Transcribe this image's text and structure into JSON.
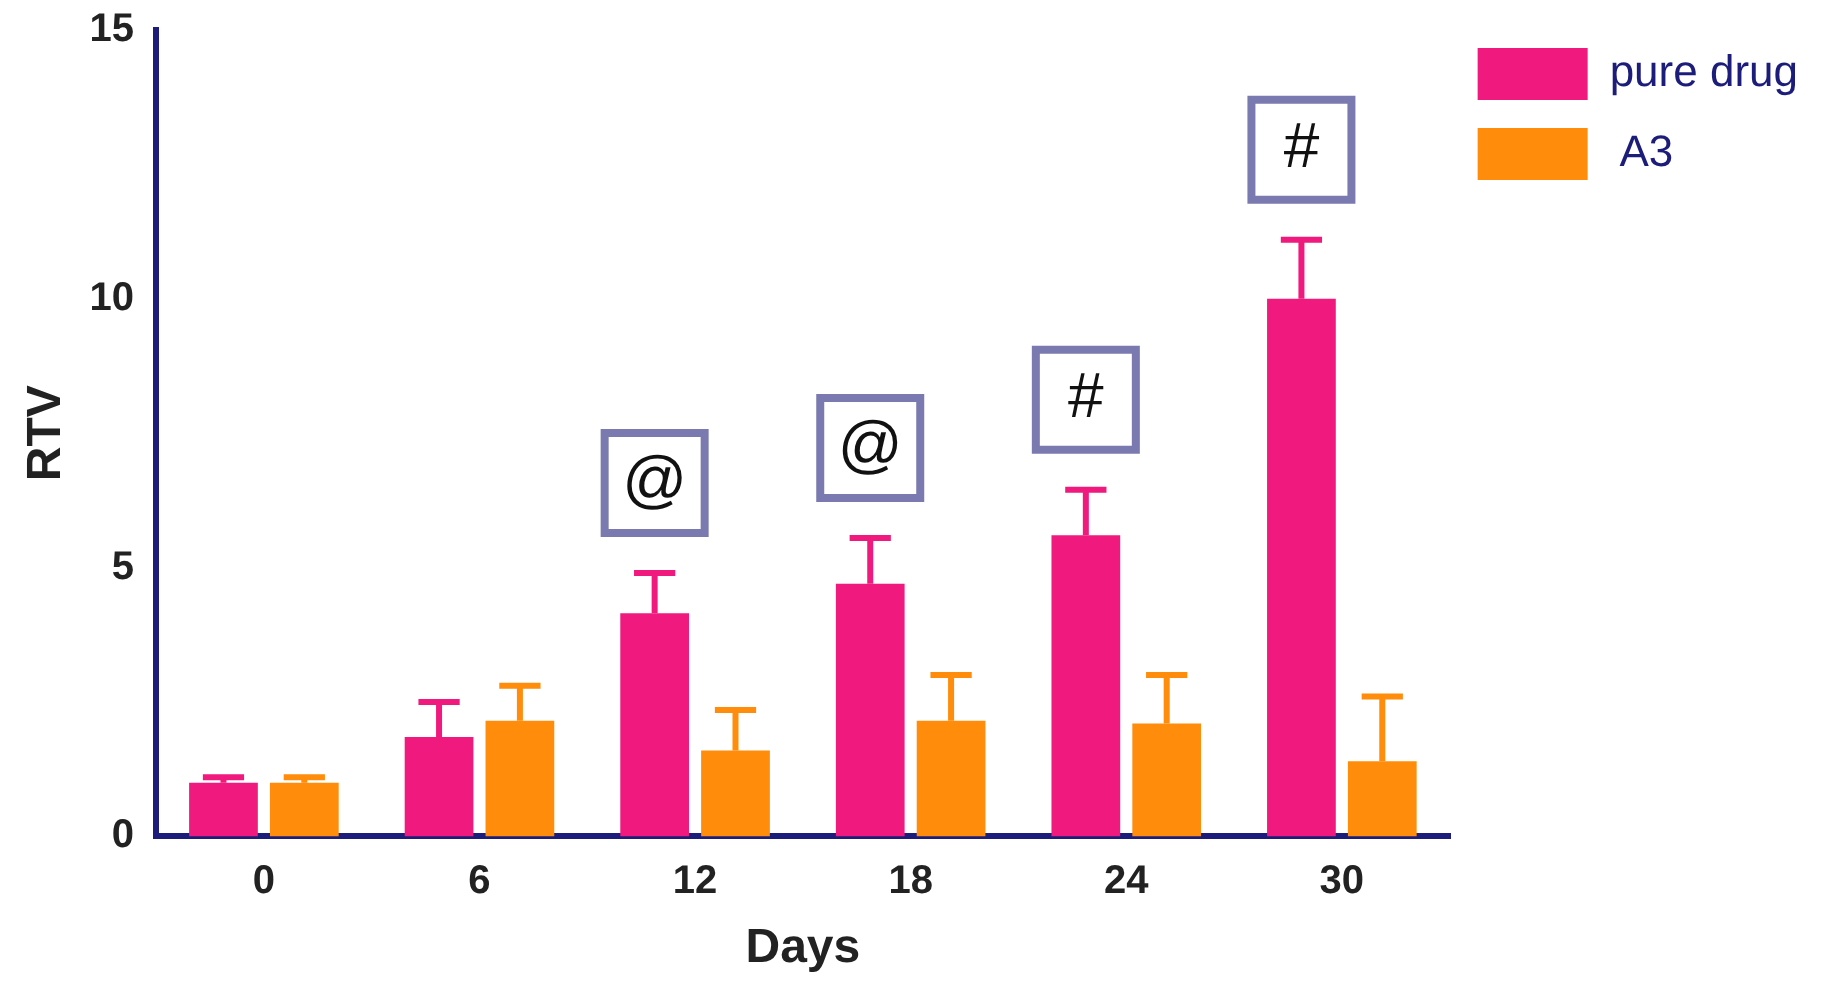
{
  "chart_data": {
    "type": "bar",
    "xlabel": "Days",
    "ylabel": "RTV",
    "categories": [
      "0",
      "6",
      "12",
      "18",
      "24",
      "30"
    ],
    "series": [
      {
        "name": "pure drug",
        "color": "#f0197d",
        "values": [
          1.0,
          1.85,
          4.15,
          4.7,
          5.6,
          10.0
        ],
        "errors": [
          [
            1.0,
            1.1
          ],
          [
            1.85,
            2.5
          ],
          [
            4.15,
            4.9
          ],
          [
            4.7,
            5.55
          ],
          [
            5.6,
            6.45
          ],
          [
            10.0,
            11.1
          ]
        ]
      },
      {
        "name": " A3",
        "color": "#ff8c0a",
        "values": [
          1.0,
          2.15,
          1.6,
          2.15,
          2.1,
          1.4
        ],
        "errors": [
          [
            1.0,
            1.1
          ],
          [
            2.15,
            2.8
          ],
          [
            1.6,
            2.35
          ],
          [
            2.15,
            3.0
          ],
          [
            2.1,
            3.0
          ],
          [
            1.4,
            2.6
          ]
        ]
      }
    ],
    "ylim": [
      0,
      15
    ],
    "yticks": [
      0,
      5,
      10,
      15
    ],
    "grid": false,
    "legend": "top right",
    "annotations": [
      "@",
      "@",
      "#",
      "#"
    ]
  }
}
